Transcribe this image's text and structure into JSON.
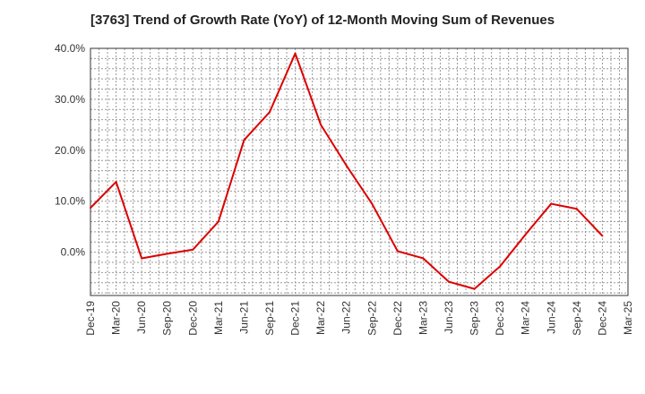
{
  "chart_data": {
    "type": "line",
    "title": "[3763]  Trend of Growth Rate (YoY) of 12-Month Moving Sum of Revenues",
    "xlabel": "",
    "ylabel": "",
    "categories": [
      "Dec-19",
      "Mar-20",
      "Jun-20",
      "Sep-20",
      "Dec-20",
      "Mar-21",
      "Jun-21",
      "Sep-21",
      "Dec-21",
      "Mar-22",
      "Jun-22",
      "Sep-22",
      "Dec-22",
      "Mar-23",
      "Jun-23",
      "Sep-23",
      "Dec-23",
      "Mar-24",
      "Jun-24",
      "Sep-24",
      "Dec-24",
      "Mar-25"
    ],
    "series": [
      {
        "color": "#dd0000",
        "values": [
          8.7,
          13.8,
          -1.2,
          -0.3,
          0.5,
          6.0,
          22.0,
          27.5,
          39.0,
          25.0,
          17.0,
          9.5,
          0.2,
          -1.2,
          -5.8,
          -7.2,
          -2.8,
          3.5,
          9.5,
          8.5,
          3.2,
          null
        ]
      }
    ],
    "yticks": [
      0,
      10,
      20,
      30,
      40
    ],
    "ytick_labels": [
      "0.0%",
      "10.0%",
      "20.0%",
      "30.0%",
      "40.0%"
    ],
    "ylim": [
      -8.5,
      40
    ],
    "grid": true,
    "grid_style": "dotted",
    "legend": "none"
  }
}
